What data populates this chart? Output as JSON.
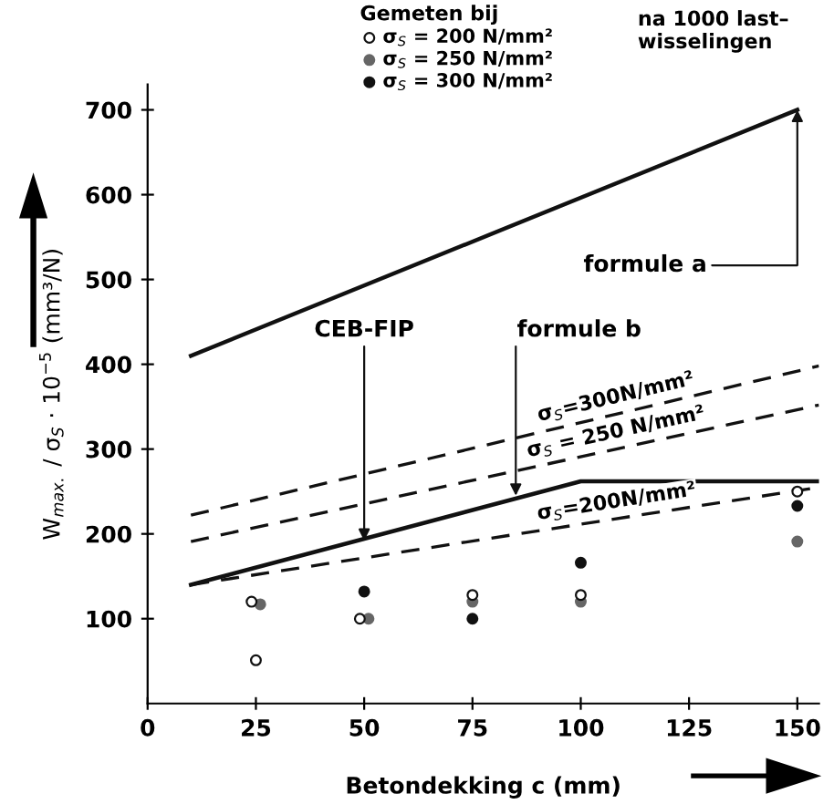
{
  "chart_data": {
    "type": "scatter",
    "xlabel": "Betondekking c (mm)",
    "ylabel": "W$_{max.}$ / σ$_{S}$ · 10$^{−5}$ (mm³/N)",
    "xlim": [
      0,
      155
    ],
    "xticks": [
      0,
      25,
      50,
      75,
      100,
      125,
      150
    ],
    "ylim": [
      0,
      730
    ],
    "yticks": [
      100,
      200,
      300,
      400,
      500,
      600,
      700
    ],
    "grid": false,
    "legend": "top",
    "legend_title": "Gemeten bij",
    "series": [
      {
        "type": "line",
        "line_style": "solid",
        "color": "#111111",
        "x": [
          10,
          150
        ],
        "values": [
          410,
          700
        ]
      },
      {
        "type": "line",
        "line_style": "dashed",
        "color": "#111111",
        "name": "σ$_{S}$=300N/mm²",
        "x": [
          10,
          155
        ],
        "values": [
          222,
          398
        ]
      },
      {
        "type": "line",
        "line_style": "dashed",
        "color": "#111111",
        "name": "σ$_{S}$ = 250 N/mm²",
        "x": [
          10,
          155
        ],
        "values": [
          191,
          352
        ]
      },
      {
        "type": "line",
        "line_style": "dashed",
        "color": "#111111",
        "name": "σ$_{S}$=200N/mm²",
        "x": [
          10,
          155
        ],
        "values": [
          140,
          255
        ]
      },
      {
        "type": "line",
        "line_style": "solid",
        "color": "#111111",
        "x": [
          10,
          100,
          155
        ],
        "values": [
          140,
          262,
          262
        ]
      },
      {
        "marker": "circle",
        "color": "#111111",
        "name": "σ$_{S}$ = 200 N/mm²",
        "x": [
          24,
          25,
          49,
          75,
          100,
          150
        ],
        "values": [
          120,
          51,
          100,
          128,
          128,
          250
        ]
      },
      {
        "marker": "circle",
        "color": "#666666",
        "name": "σ$_{S}$ = 250 N/mm²",
        "x": [
          26,
          51,
          75,
          100,
          150
        ],
        "values": [
          117,
          100,
          120,
          120,
          191
        ]
      },
      {
        "marker": "circle",
        "color": "#111111",
        "name": "σ$_{S}$ = 300 N/mm²",
        "x": [
          50,
          75,
          100,
          150
        ],
        "values": [
          132,
          100,
          166,
          233
        ]
      }
    ],
    "annotations": [
      {
        "text": "formule a",
        "x": 150,
        "y": 700
      },
      {
        "text": "CEB-FIP",
        "x": 50,
        "y": 192
      },
      {
        "text": "formule b",
        "x": 85,
        "y": 245
      },
      "na 1000 last–\nwisselingen"
    ]
  }
}
